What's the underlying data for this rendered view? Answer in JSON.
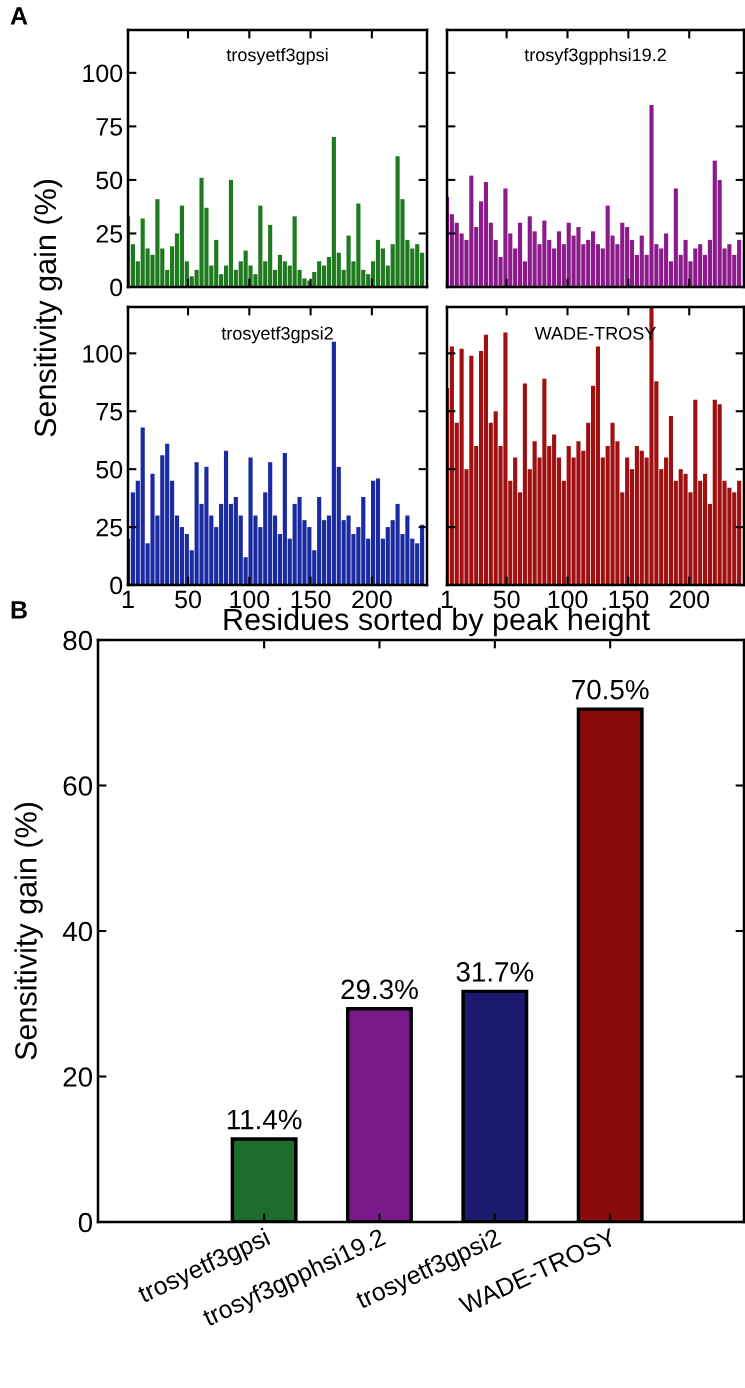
{
  "chart_data": [
    {
      "type": "bar",
      "title": "trosyetf3gpsi",
      "ylabel": "Sensitivity gain (%)",
      "annotations": [
        "A"
      ],
      "tick_labels": "y",
      "xlim": [
        1,
        245
      ],
      "ylim": [
        0,
        120
      ],
      "xticks": [
        1,
        50,
        100,
        150,
        200
      ],
      "yticks": [
        0,
        25,
        50,
        75,
        100
      ],
      "x": [
        1,
        5,
        9,
        13,
        17,
        21,
        25,
        29,
        33,
        37,
        41,
        45,
        49,
        53,
        57,
        61,
        65,
        69,
        73,
        77,
        81,
        85,
        89,
        93,
        97,
        101,
        105,
        109,
        113,
        117,
        121,
        125,
        129,
        133,
        137,
        141,
        145,
        149,
        153,
        157,
        161,
        165,
        169,
        173,
        177,
        181,
        185,
        189,
        193,
        197,
        201,
        205,
        209,
        213,
        217,
        221,
        225,
        229,
        233,
        237,
        241
      ],
      "series": [
        {
          "color": "#1f7a1f",
          "values": [
            33,
            20,
            12,
            32,
            18,
            15,
            41,
            18,
            8,
            19,
            25,
            38,
            12,
            5,
            8,
            51,
            37,
            10,
            22,
            6,
            10,
            50,
            8,
            12,
            17,
            10,
            6,
            38,
            12,
            29,
            8,
            15,
            12,
            10,
            33,
            8,
            4,
            3,
            7,
            12,
            10,
            14,
            70,
            16,
            8,
            24,
            12,
            39,
            8,
            6,
            12,
            22,
            18,
            10,
            20,
            61,
            41,
            22,
            18,
            20,
            16
          ]
        }
      ]
    },
    {
      "type": "bar",
      "title": "trosyf3gpphsi19.2",
      "tick_labels": false,
      "xlim": [
        1,
        245
      ],
      "ylim": [
        0,
        120
      ],
      "xticks": [
        1,
        50,
        100,
        150,
        200
      ],
      "yticks": [
        0,
        25,
        50,
        75,
        100
      ],
      "x": [
        1,
        5,
        9,
        13,
        17,
        21,
        25,
        29,
        33,
        37,
        41,
        45,
        49,
        53,
        57,
        61,
        65,
        69,
        73,
        77,
        81,
        85,
        89,
        93,
        97,
        101,
        105,
        109,
        113,
        117,
        121,
        125,
        129,
        133,
        137,
        141,
        145,
        149,
        153,
        157,
        161,
        165,
        169,
        173,
        177,
        181,
        185,
        189,
        193,
        197,
        201,
        205,
        209,
        213,
        217,
        221,
        225,
        229,
        233,
        237,
        241
      ],
      "series": [
        {
          "color": "#8b1a8b",
          "values": [
            42,
            34,
            30,
            25,
            22,
            52,
            28,
            40,
            49,
            30,
            22,
            14,
            46,
            25,
            18,
            30,
            12,
            33,
            26,
            20,
            31,
            22,
            18,
            26,
            20,
            30,
            24,
            28,
            20,
            22,
            26,
            20,
            18,
            38,
            24,
            20,
            30,
            28,
            22,
            15,
            24,
            15,
            85,
            20,
            18,
            25,
            12,
            46,
            15,
            22,
            12,
            18,
            20,
            15,
            22,
            59,
            50,
            18,
            20,
            15,
            22
          ]
        }
      ]
    },
    {
      "type": "bar",
      "title": "trosyetf3gpsi2",
      "xlabel": "Residues sorted by peak height",
      "xlim": [
        1,
        245
      ],
      "ylim": [
        0,
        120
      ],
      "xticks": [
        1,
        50,
        100,
        150,
        200
      ],
      "yticks": [
        0,
        25,
        50,
        75,
        100
      ],
      "x": [
        1,
        5,
        9,
        13,
        17,
        21,
        25,
        29,
        33,
        37,
        41,
        45,
        49,
        53,
        57,
        61,
        65,
        69,
        73,
        77,
        81,
        85,
        89,
        93,
        97,
        101,
        105,
        109,
        113,
        117,
        121,
        125,
        129,
        133,
        137,
        141,
        145,
        149,
        153,
        157,
        161,
        165,
        169,
        173,
        177,
        181,
        185,
        189,
        193,
        197,
        201,
        205,
        209,
        213,
        217,
        221,
        225,
        229,
        233,
        237,
        241
      ],
      "series": [
        {
          "color": "#1a2aa0",
          "values": [
            20,
            40,
            45,
            68,
            18,
            48,
            30,
            56,
            61,
            45,
            30,
            25,
            22,
            15,
            53,
            35,
            51,
            30,
            25,
            35,
            58,
            35,
            38,
            30,
            12,
            55,
            30,
            25,
            40,
            53,
            30,
            22,
            57,
            20,
            35,
            38,
            28,
            25,
            15,
            38,
            28,
            30,
            105,
            51,
            28,
            30,
            22,
            25,
            38,
            20,
            45,
            46,
            20,
            25,
            28,
            35,
            22,
            30,
            20,
            18,
            26
          ]
        }
      ]
    },
    {
      "type": "bar",
      "title": "WADE-TROSY",
      "tick_labels": "x",
      "xlim": [
        1,
        245
      ],
      "ylim": [
        0,
        120
      ],
      "xticks": [
        1,
        50,
        100,
        150,
        200
      ],
      "yticks": [
        0,
        25,
        50,
        75,
        100
      ],
      "x": [
        1,
        5,
        9,
        13,
        17,
        21,
        25,
        29,
        33,
        37,
        41,
        45,
        49,
        53,
        57,
        61,
        65,
        69,
        73,
        77,
        81,
        85,
        89,
        93,
        97,
        101,
        105,
        109,
        113,
        117,
        121,
        125,
        129,
        133,
        137,
        141,
        145,
        149,
        153,
        157,
        161,
        165,
        169,
        173,
        177,
        181,
        185,
        189,
        193,
        197,
        201,
        205,
        209,
        213,
        217,
        221,
        225,
        229,
        233,
        237,
        241
      ],
      "series": [
        {
          "color": "#a01010",
          "values": [
            85,
            103,
            70,
            102,
            50,
            99,
            60,
            101,
            108,
            70,
            75,
            60,
            109,
            45,
            55,
            40,
            87,
            50,
            62,
            55,
            89,
            60,
            65,
            55,
            45,
            60,
            55,
            62,
            58,
            70,
            86,
            103,
            55,
            60,
            70,
            62,
            40,
            55,
            50,
            60,
            58,
            55,
            120,
            88,
            50,
            55,
            73,
            45,
            50,
            48,
            40,
            80,
            45,
            48,
            35,
            80,
            78,
            45,
            42,
            40,
            45
          ]
        }
      ]
    },
    {
      "type": "bar",
      "ylabel": "Sensitivity gain (%)",
      "annotations": [
        "B"
      ],
      "categories": [
        "trosyetf3gpsi",
        "trosyf3gpphsi19.2",
        "trosyetf3gpsi2",
        "WADE-TROSY"
      ],
      "ylim": [
        0,
        80
      ],
      "yticks": [
        0,
        20,
        40,
        60,
        80
      ],
      "values": [
        11.4,
        29.3,
        31.7,
        70.5
      ],
      "colors": [
        "#1e6b2e",
        "#7a1a8a",
        "#1a1a6e",
        "#8b0a0a"
      ],
      "value_labels": [
        "11.4%",
        "29.3%",
        "31.7%",
        "70.5%"
      ]
    }
  ]
}
